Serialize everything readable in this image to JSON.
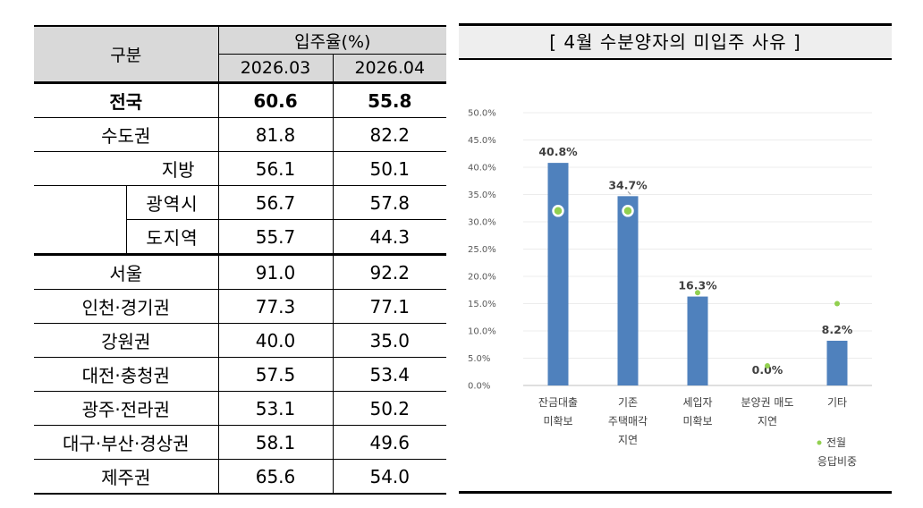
{
  "table": {
    "header_group": "구분",
    "header_rate": "입주율(%)",
    "col1": "2026.03",
    "col2": "2026.04",
    "rows": [
      {
        "label": "전국",
        "v1": "60.6",
        "v2": "55.8"
      },
      {
        "label": "수도권",
        "v1": "81.8",
        "v2": "82.2"
      },
      {
        "label": "지방",
        "v1": "56.1",
        "v2": "50.1"
      },
      {
        "label": "광역시",
        "v1": "56.7",
        "v2": "57.8"
      },
      {
        "label": "도지역",
        "v1": "55.7",
        "v2": "44.3"
      },
      {
        "label": "서울",
        "v1": "91.0",
        "v2": "92.2"
      },
      {
        "label": "인천·경기권",
        "v1": "77.3",
        "v2": "77.1"
      },
      {
        "label": "강원권",
        "v1": "40.0",
        "v2": "35.0"
      },
      {
        "label": "대전·충청권",
        "v1": "57.5",
        "v2": "53.4"
      },
      {
        "label": "광주·전라권",
        "v1": "53.1",
        "v2": "50.2"
      },
      {
        "label": "대구·부산·경상권",
        "v1": "58.1",
        "v2": "49.6"
      },
      {
        "label": "제주권",
        "v1": "65.6",
        "v2": "54.0"
      }
    ]
  },
  "chart_data": {
    "type": "bar",
    "title": "[ 4월 수분양자의 미입주 사유 ]",
    "categories": [
      [
        "잔금대출",
        "미확보"
      ],
      [
        "기존",
        "주택매각",
        "지연"
      ],
      [
        "세입자",
        "미확보"
      ],
      [
        "분양권 매도",
        "지연"
      ],
      [
        "기타"
      ]
    ],
    "series": [
      {
        "values": [
          40.8,
          34.7,
          16.3,
          0.0,
          8.2
        ],
        "labels": [
          "40.8%",
          "34.7%",
          "16.3%",
          "0.0%",
          "8.2%"
        ],
        "color": "#4f81bd"
      },
      {
        "name": "전월 응답비중",
        "values": [
          32.0,
          32.0,
          17.0,
          3.6,
          15.0
        ],
        "color": "#92d050"
      }
    ],
    "y_ticks": [
      "0.0%",
      "5.0%",
      "10.0%",
      "15.0%",
      "20.0%",
      "25.0%",
      "30.0%",
      "35.0%",
      "40.0%",
      "45.0%",
      "50.0%"
    ],
    "ylim": [
      0,
      50
    ],
    "legend": {
      "label_lines": [
        "전월",
        "응답비중"
      ],
      "position": "bottom-right"
    },
    "grid": true
  }
}
